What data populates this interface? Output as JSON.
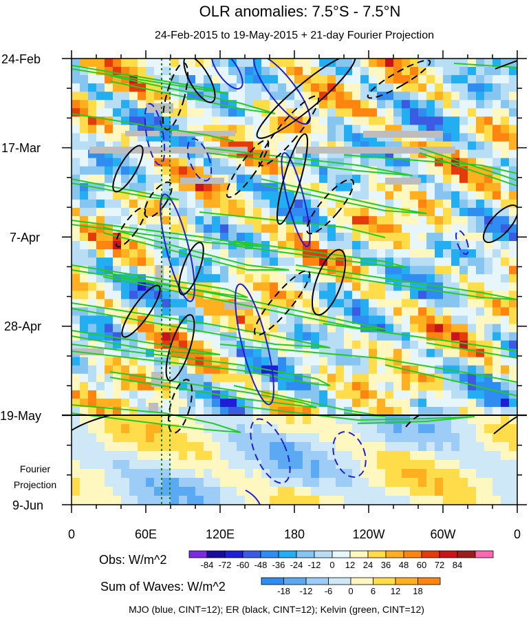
{
  "chart_data": {
    "type": "heatmap",
    "title": "OLR anomalies: 7.5°S - 7.5°N",
    "subtitle": "24-Feb-2015 to 19-May-2015 + 21-day Fourier Projection",
    "x_ticks": [
      "0",
      "60E",
      "120E",
      "180",
      "120W",
      "60W",
      "0"
    ],
    "y_ticks": [
      "24-Feb",
      "17-Mar",
      "7-Apr",
      "28-Apr",
      "19-May",
      "9-Jun"
    ],
    "y_side_label": [
      "Fourier",
      "Projection"
    ],
    "obs_label": "Obs: W/m^2",
    "obs_colorbar": {
      "ticks": [
        "-84",
        "-72",
        "-60",
        "-48",
        "-36",
        "-24",
        "-12",
        "0",
        "12",
        "24",
        "36",
        "48",
        "60",
        "72",
        "84"
      ],
      "colors": [
        "#7b2be0",
        "#1a0d9e",
        "#1e1ed6",
        "#3b5be3",
        "#2f8cf0",
        "#22aef0",
        "#86c5f0",
        "#b8def5",
        "#e6f6fb",
        "#fff7c0",
        "#ffdc4a",
        "#ffb020",
        "#ff8410",
        "#e33b0c",
        "#c8141a",
        "#9a1e1e",
        "#ff69b4"
      ]
    },
    "waves_label": "Sum of Waves: W/m^2",
    "waves_colorbar": {
      "ticks": [
        "-18",
        "-12",
        "-6",
        "0",
        "6",
        "12",
        "18"
      ],
      "colors": [
        "#2f8cf0",
        "#5aa9f2",
        "#9dcdf6",
        "#cfe8f8",
        "#fff7c0",
        "#ffdc4a",
        "#ffb020",
        "#ff8410"
      ]
    },
    "footer": "MJO (blue, CINT=12); ER (black, CINT=12); Kelvin (green, CINT=12)"
  }
}
